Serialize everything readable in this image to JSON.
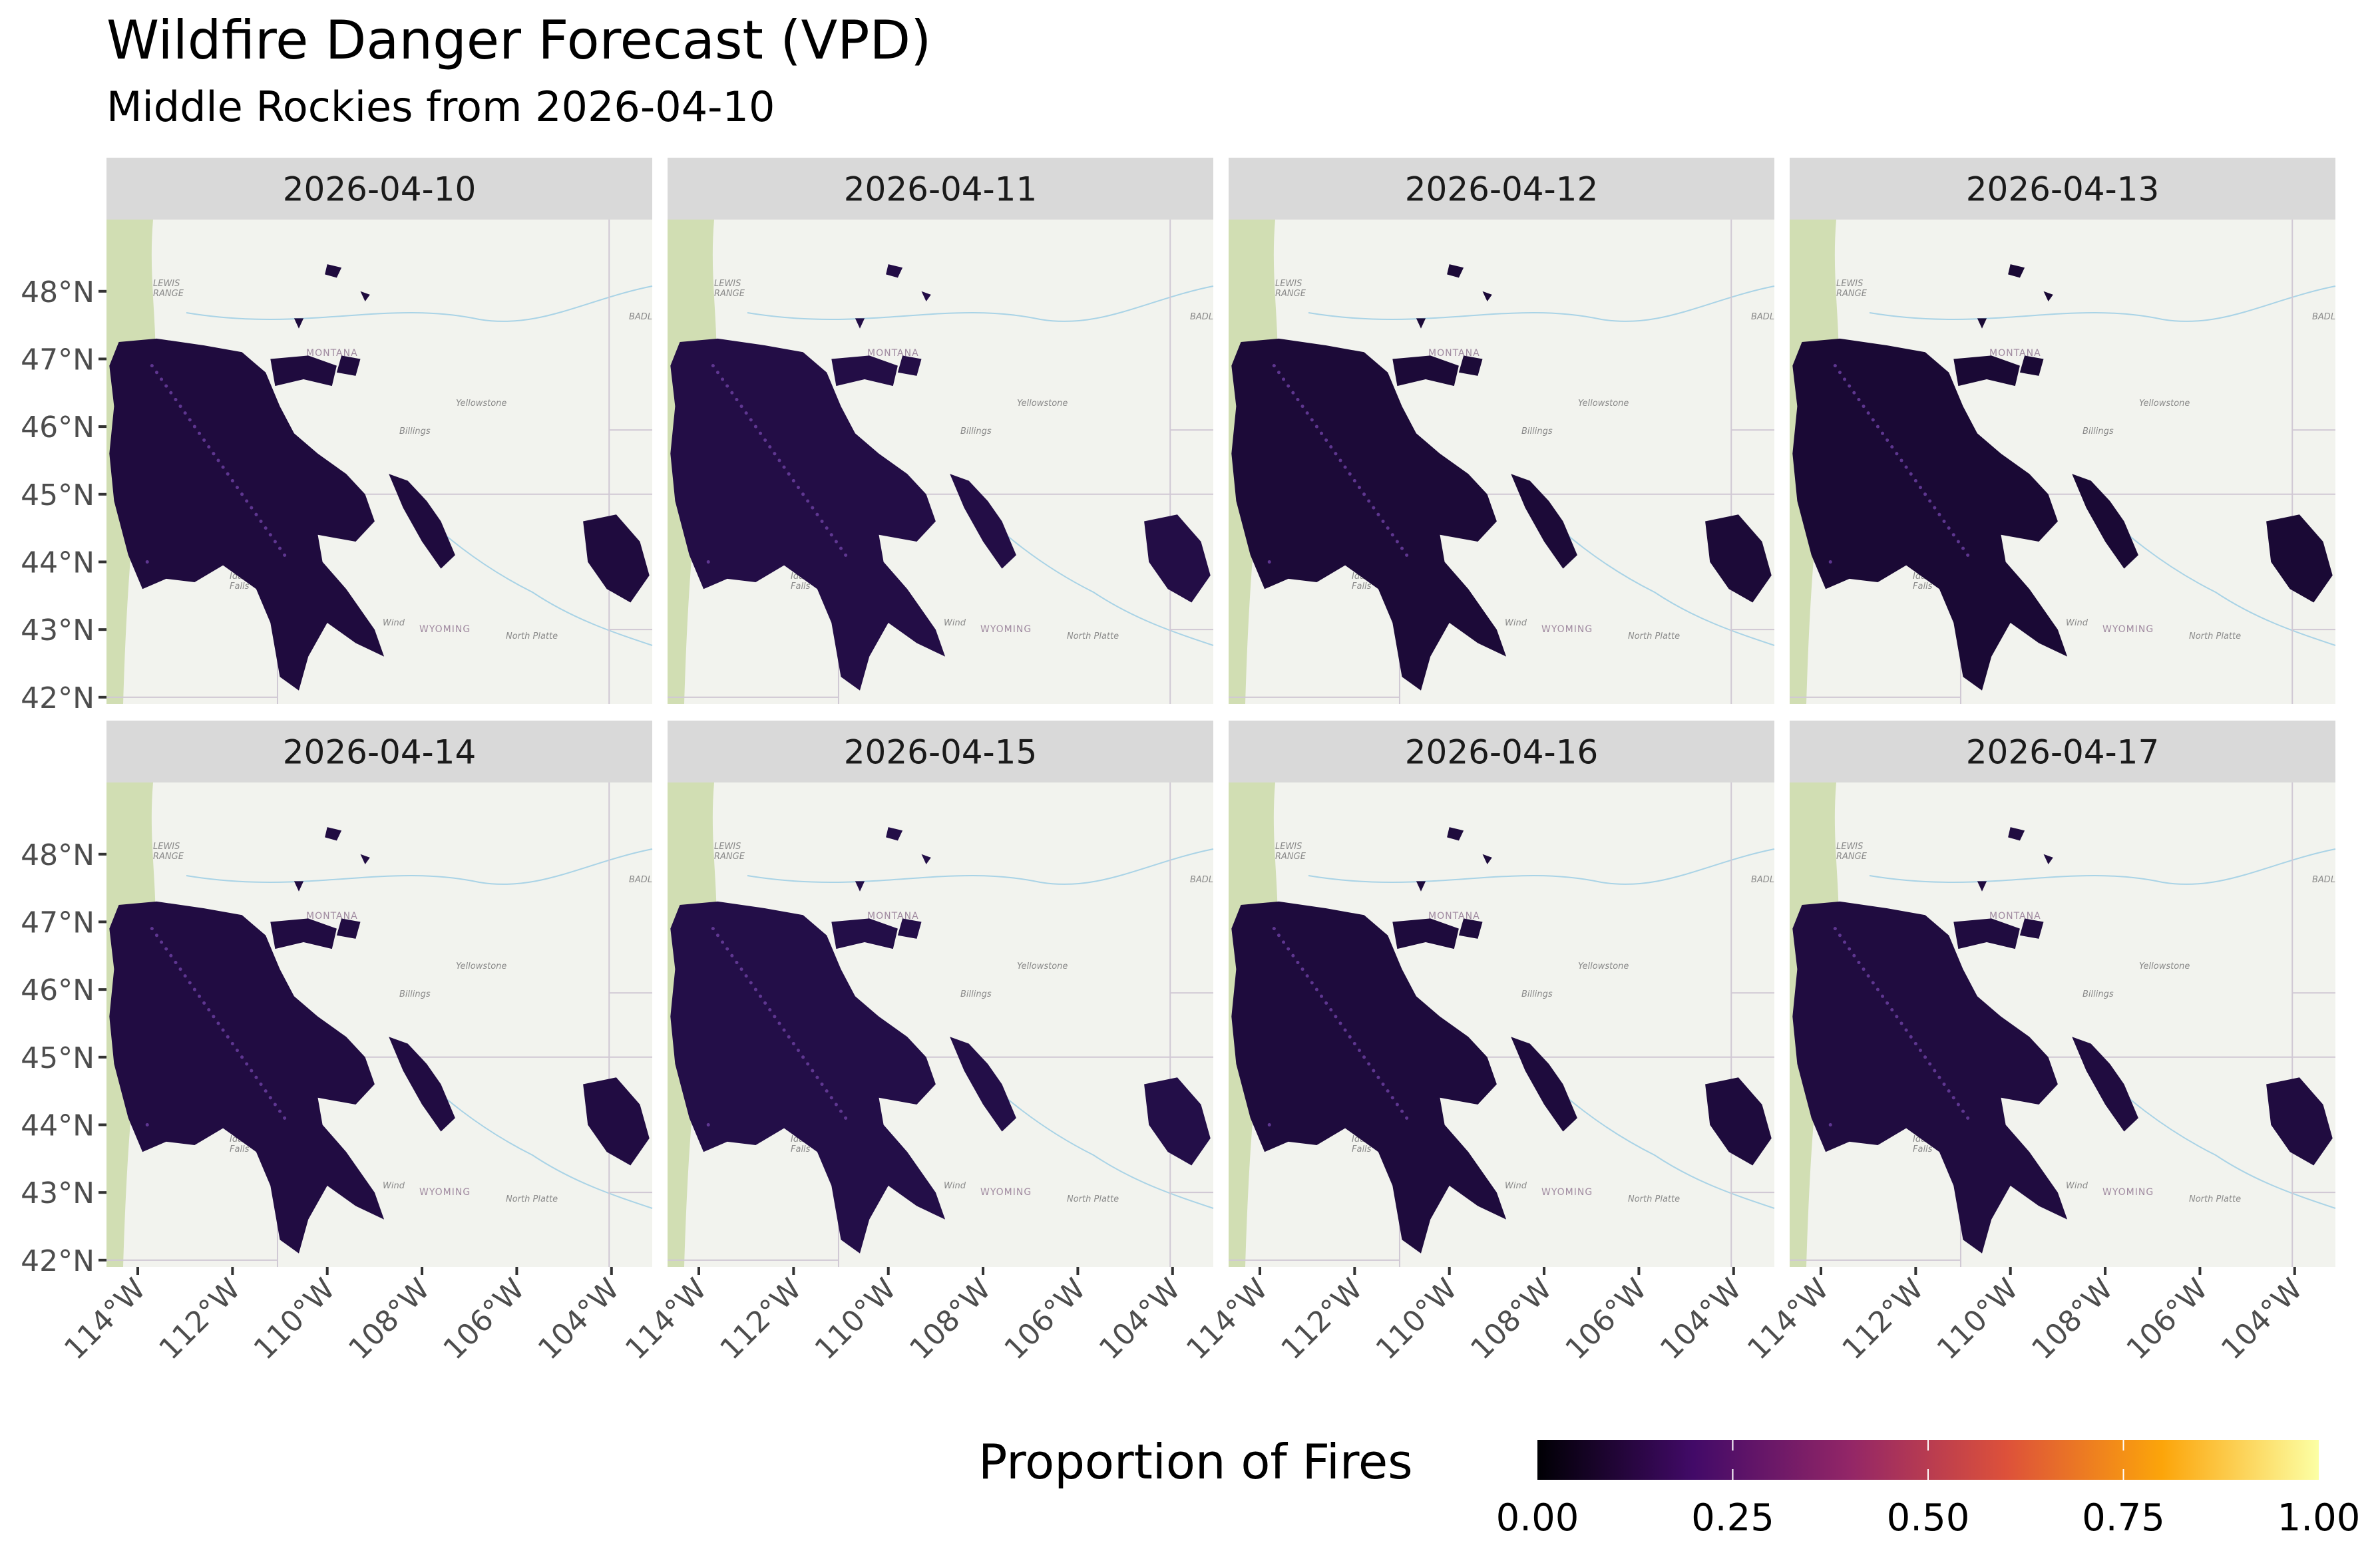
{
  "chart_data": {
    "type": "heatmap",
    "title": "Wildfire Danger Forecast (VPD)",
    "subtitle": "Middle Rockies from 2026-04-10",
    "facets": [
      "2026-04-10",
      "2026-04-11",
      "2026-04-12",
      "2026-04-13",
      "2026-04-14",
      "2026-04-15",
      "2026-04-16",
      "2026-04-17"
    ],
    "x_ticks": [
      "114°W",
      "112°W",
      "110°W",
      "108°W",
      "106°W",
      "104°W"
    ],
    "x_tick_values": [
      -114,
      -112,
      -110,
      -108,
      -106,
      -104
    ],
    "y_ticks": [
      "48°N",
      "47°N",
      "46°N",
      "45°N",
      "44°N",
      "43°N",
      "42°N"
    ],
    "y_tick_values": [
      48,
      47,
      46,
      45,
      44,
      43,
      42
    ],
    "xlim": [
      -114.66,
      -103.14
    ],
    "ylim": [
      41.9,
      49.06
    ],
    "legend": {
      "title": "Proportion of Fires",
      "placement": "bottom",
      "range": [
        0,
        1
      ],
      "labels": [
        "0.00",
        "0.25",
        "0.50",
        "0.75",
        "1.00"
      ],
      "label_values": [
        0,
        0.25,
        0.5,
        0.75,
        1
      ],
      "palette": [
        "#000004",
        "#3b0f70",
        "#8c2981",
        "#de4968",
        "#fe9f6d",
        "#fcfdbf"
      ],
      "palette_stops": [
        "#000004",
        "#420a68",
        "#932667",
        "#dd513a",
        "#fca50a",
        "#fcffa4"
      ]
    },
    "fill_color_typical": "#200c40",
    "value_note_range": [
      0,
      0.2
    ]
  },
  "basemap_labels": {
    "lewis": "LEWIS",
    "range": "RANGE",
    "montana": "MONTANA",
    "billings": "Billings",
    "yellowstone": "Yellowstone",
    "wyoming": "WYOMING",
    "north_platte": "North Platte",
    "wind": "Wind",
    "idaho": "Idaho",
    "falls": "Falls",
    "badl": "BADL"
  },
  "colors": {
    "strip_bg": "#d9d9d9",
    "map_bg": "#f2f3ee",
    "forest": "#c8d8a4",
    "water": "#a9d3e6",
    "tick": "#333333"
  }
}
